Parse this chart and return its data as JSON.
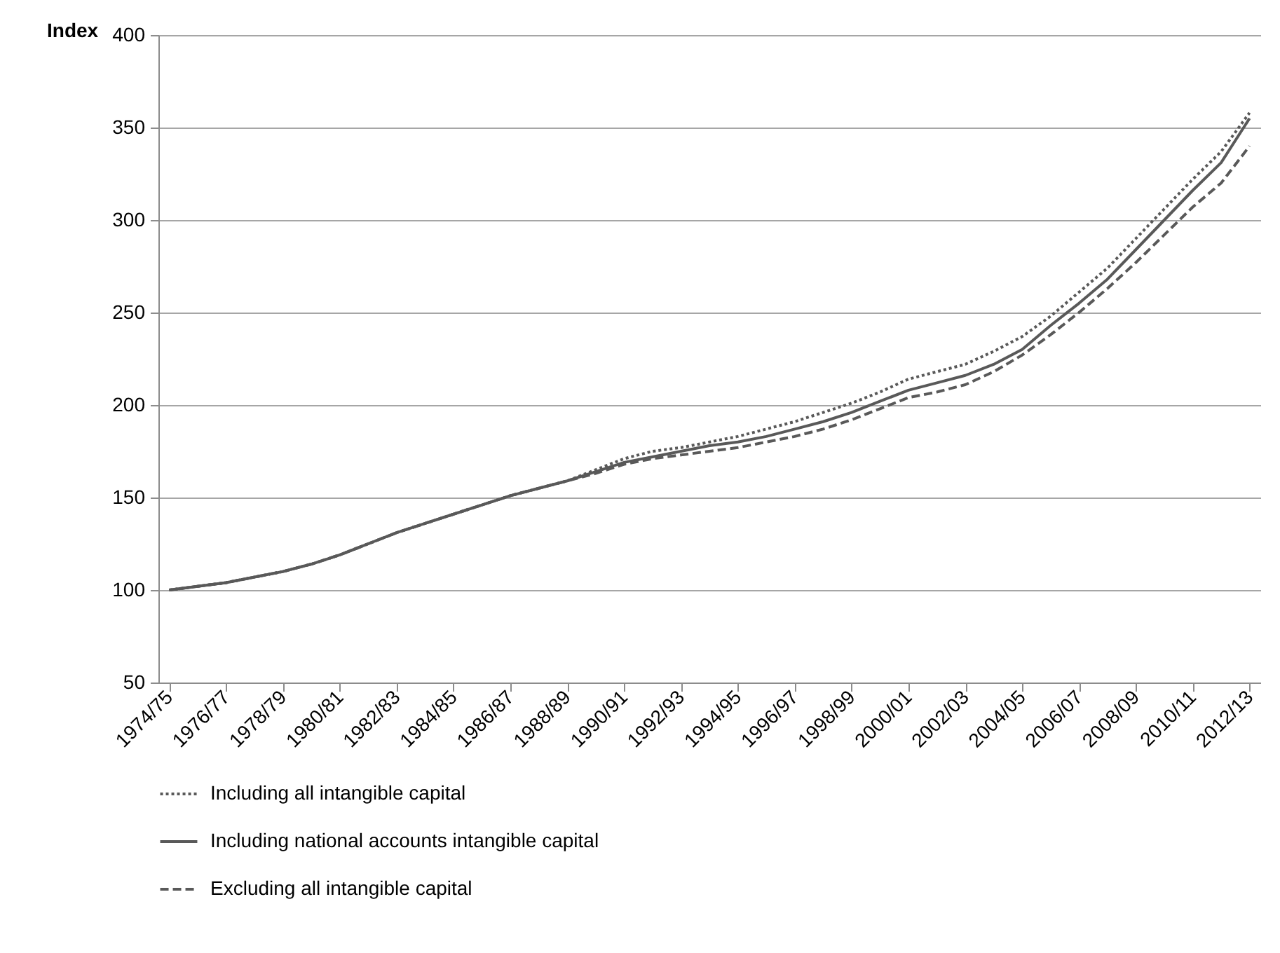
{
  "chart_data": {
    "type": "line",
    "ylabel": "Index",
    "categories": [
      "1974/75",
      null,
      "1976/77",
      null,
      "1978/79",
      null,
      "1980/81",
      null,
      "1982/83",
      null,
      "1984/85",
      null,
      "1986/87",
      null,
      "1988/89",
      null,
      "1990/91",
      null,
      "1992/93",
      null,
      "1994/95",
      null,
      "1996/97",
      null,
      "1998/99",
      null,
      "2000/01",
      null,
      "2002/03",
      null,
      "2004/05",
      null,
      "2006/07",
      null,
      "2008/09",
      null,
      "2010/11",
      null,
      "2012/13"
    ],
    "series": [
      {
        "name": "Including all intangible capital",
        "color": "#595959",
        "line_style": "dotted",
        "values": [
          100,
          102,
          104,
          107,
          110,
          114,
          119,
          125,
          131,
          136,
          141,
          146,
          151,
          155,
          159,
          165,
          171,
          175,
          177,
          180,
          183,
          187,
          191,
          196,
          201,
          207,
          214,
          218,
          222,
          229,
          237,
          248,
          261,
          274,
          290,
          306,
          322,
          337,
          358
        ]
      },
      {
        "name": "Including  national accounts intangible capital",
        "color": "#595959",
        "line_style": "solid",
        "values": [
          100,
          102,
          104,
          107,
          110,
          114,
          119,
          125,
          131,
          136,
          141,
          146,
          151,
          155,
          159,
          164,
          169,
          172,
          175,
          178,
          180,
          183,
          187,
          191,
          196,
          202,
          208,
          212,
          216,
          222,
          230,
          243,
          255,
          268,
          284,
          300,
          316,
          331,
          355
        ]
      },
      {
        "name": "Excluding all intangible capital",
        "color": "#595959",
        "line_style": "dashed",
        "values": [
          100,
          102,
          104,
          107,
          110,
          114,
          119,
          125,
          131,
          136,
          141,
          146,
          151,
          155,
          159,
          163,
          168,
          171,
          173,
          175,
          177,
          180,
          183,
          187,
          192,
          198,
          204,
          207,
          211,
          218,
          227,
          238,
          250,
          263,
          277,
          292,
          307,
          320,
          340
        ]
      }
    ],
    "ylim": [
      50,
      400
    ],
    "yticks": [
      50,
      100,
      150,
      200,
      250,
      300,
      350,
      400
    ],
    "grid": "y",
    "legend": "bottom"
  }
}
